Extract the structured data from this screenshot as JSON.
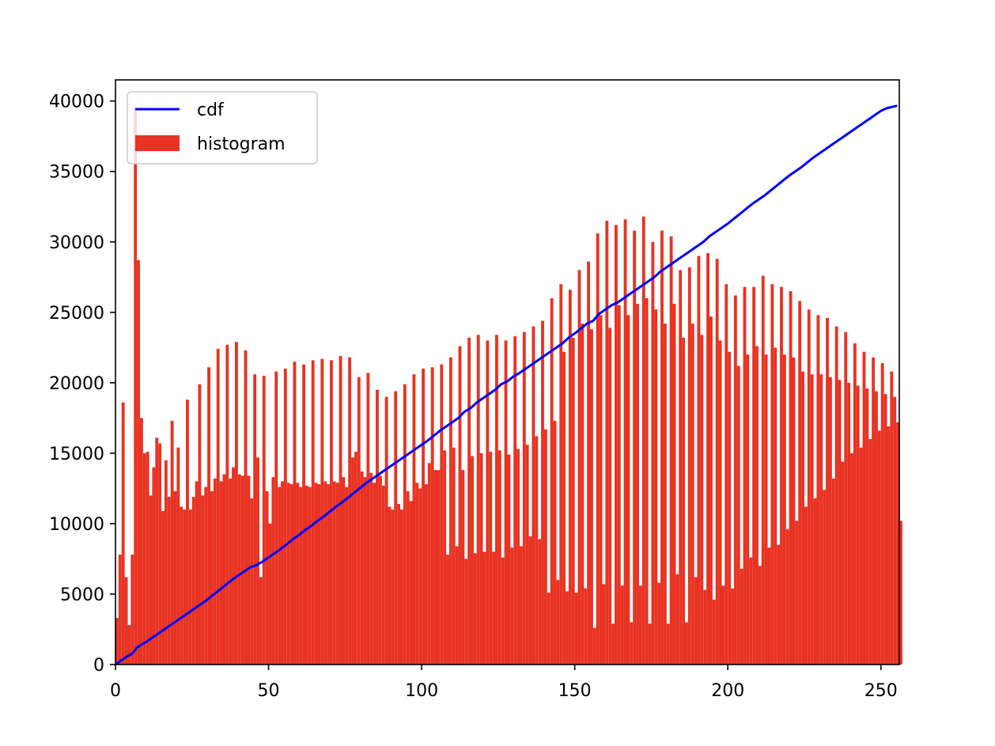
{
  "chart_data": {
    "type": "bar",
    "title": "",
    "xlabel": "",
    "ylabel": "",
    "xlim": [
      0,
      256
    ],
    "ylim": [
      0,
      41500
    ],
    "xticks": [
      0,
      50,
      100,
      150,
      200,
      250
    ],
    "xtick_labels": [
      "0",
      "50",
      "100",
      "150",
      "200",
      "250"
    ],
    "yticks": [
      0,
      5000,
      10000,
      15000,
      20000,
      25000,
      30000,
      35000,
      40000
    ],
    "ytick_labels": [
      "0",
      "5000",
      "10000",
      "15000",
      "20000",
      "25000",
      "30000",
      "35000",
      "40000"
    ],
    "grid": false,
    "legend": {
      "position": "upper left",
      "entries": [
        {
          "label": "cdf",
          "kind": "line",
          "color": "#0000ff"
        },
        {
          "label": "histogram",
          "kind": "patch",
          "color": "#e83323"
        }
      ]
    },
    "series": [
      {
        "name": "histogram",
        "kind": "bar",
        "color": "#e83323",
        "x_start": 0,
        "bin_width": 1,
        "values": [
          3300,
          7800,
          18600,
          6200,
          2800,
          7800,
          39500,
          28700,
          17500,
          15000,
          15100,
          12000,
          14000,
          16100,
          15700,
          10900,
          14500,
          11900,
          17300,
          12300,
          15400,
          11200,
          11000,
          18800,
          11000,
          11900,
          13000,
          19900,
          12000,
          12600,
          21100,
          12300,
          13200,
          22400,
          13000,
          13500,
          22700,
          13200,
          14000,
          22900,
          13500,
          13400,
          22300,
          13400,
          11800,
          20600,
          14700,
          6200,
          20500,
          12300,
          10000,
          13300,
          20800,
          12600,
          13000,
          21000,
          12900,
          12800,
          21500,
          12900,
          12600,
          21300,
          12700,
          12600,
          21600,
          12900,
          12800,
          21700,
          13000,
          12800,
          21600,
          13000,
          12900,
          21900,
          13300,
          12600,
          21800,
          14700,
          15100,
          20400,
          13700,
          13300,
          20700,
          13600,
          12900,
          19500,
          13400,
          12700,
          19000,
          11200,
          11000,
          19400,
          11400,
          11000,
          19900,
          12300,
          11600,
          20600,
          12900,
          12500,
          21000,
          12800,
          14300,
          21100,
          13800,
          13800,
          21300,
          15200,
          7800,
          21800,
          15400,
          8400,
          22600,
          13800,
          7500,
          23200,
          14800,
          7900,
          23400,
          15000,
          8000,
          23000,
          15100,
          8000,
          23400,
          15200,
          7600,
          23000,
          14900,
          8300,
          23300,
          15300,
          8400,
          23600,
          15600,
          9100,
          24000,
          16200,
          8900,
          24400,
          16700,
          5100,
          26000,
          17300,
          6000,
          27000,
          22200,
          5200,
          26600,
          23200,
          5100,
          28000,
          24200,
          5400,
          28600,
          23800,
          2600,
          30600,
          24800,
          5700,
          31500,
          23900,
          2900,
          31200,
          25500,
          5600,
          31600,
          24800,
          3000,
          30800,
          25600,
          5600,
          31800,
          26000,
          2900,
          30000,
          25200,
          5800,
          30800,
          24200,
          2900,
          30400,
          25600,
          6400,
          28000,
          23200,
          3000,
          28200,
          24200,
          6200,
          29000,
          23400,
          5300,
          29200,
          24700,
          4600,
          28800,
          23000,
          5600,
          27000,
          22200,
          5400,
          26200,
          21200,
          6800,
          26800,
          22000,
          7600,
          26800,
          22600,
          7000,
          27600,
          22000,
          8300,
          27000,
          22500,
          8500,
          26800,
          22000,
          9600,
          26500,
          21800,
          10200,
          25800,
          20800,
          11200,
          25200,
          20600,
          11800,
          24800,
          20600,
          12400,
          24600,
          20400,
          13200,
          24000,
          20200,
          14400,
          23600,
          20000,
          15000,
          22800,
          19800,
          15400,
          22200,
          19600,
          16000,
          21800,
          19400,
          16600,
          21400,
          19200,
          16900,
          20800,
          19000,
          17200,
          10200
        ]
      },
      {
        "name": "cdf",
        "kind": "line",
        "color": "#0000ff",
        "x": [
          0,
          2,
          4,
          5,
          6,
          7,
          8,
          10,
          12,
          14,
          16,
          18,
          20,
          22,
          24,
          26,
          28,
          30,
          32,
          34,
          36,
          38,
          40,
          42,
          44,
          46,
          48,
          50,
          52,
          54,
          56,
          58,
          60,
          62,
          64,
          66,
          68,
          70,
          72,
          74,
          76,
          78,
          80,
          82,
          84,
          86,
          88,
          90,
          92,
          94,
          96,
          98,
          100,
          102,
          104,
          106,
          108,
          110,
          112,
          114,
          116,
          118,
          120,
          122,
          124,
          126,
          128,
          130,
          132,
          134,
          136,
          138,
          140,
          142,
          144,
          146,
          148,
          150,
          152,
          154,
          156,
          158,
          160,
          162,
          164,
          166,
          168,
          170,
          172,
          174,
          176,
          178,
          180,
          182,
          184,
          186,
          188,
          190,
          192,
          194,
          196,
          198,
          200,
          202,
          204,
          206,
          208,
          210,
          212,
          214,
          216,
          218,
          220,
          222,
          224,
          226,
          228,
          230,
          232,
          234,
          236,
          238,
          240,
          242,
          244,
          246,
          248,
          250,
          252,
          254,
          255
        ],
        "values": [
          0,
          300,
          600,
          700,
          900,
          1200,
          1350,
          1600,
          1900,
          2200,
          2500,
          2800,
          3100,
          3400,
          3700,
          4000,
          4300,
          4600,
          4950,
          5300,
          5650,
          6000,
          6300,
          6600,
          6900,
          7050,
          7300,
          7600,
          7900,
          8200,
          8550,
          8900,
          9200,
          9550,
          9850,
          10200,
          10500,
          10850,
          11200,
          11500,
          11850,
          12200,
          12550,
          12900,
          13200,
          13500,
          13800,
          14100,
          14400,
          14700,
          15000,
          15300,
          15600,
          15900,
          16250,
          16600,
          16900,
          17200,
          17500,
          17950,
          18200,
          18600,
          18900,
          19200,
          19500,
          19900,
          20100,
          20450,
          20700,
          21000,
          21300,
          21600,
          21900,
          22200,
          22500,
          22800,
          23200,
          23500,
          23850,
          24200,
          24400,
          24900,
          25200,
          25500,
          25700,
          26000,
          26300,
          26600,
          26900,
          27200,
          27500,
          27900,
          28200,
          28500,
          28800,
          29100,
          29400,
          29700,
          30000,
          30400,
          30700,
          31000,
          31300,
          31650,
          32000,
          32350,
          32700,
          33000,
          33300,
          33650,
          34000,
          34350,
          34700,
          35000,
          35300,
          35650,
          36000,
          36300,
          36600,
          36900,
          37200,
          37500,
          37800,
          38100,
          38400,
          38700,
          39000,
          39300,
          39500,
          39600,
          39650
        ]
      }
    ]
  }
}
